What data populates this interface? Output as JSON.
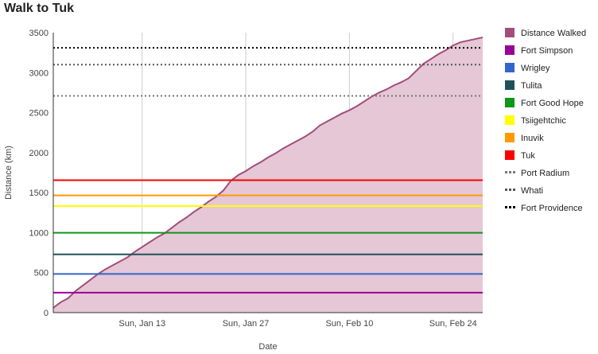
{
  "chart_data": {
    "type": "area",
    "title": "Walk to Tuk",
    "xlabel": "Date",
    "ylabel": "Distance (km)",
    "x_range": [
      "2019-01-01",
      "2019-02-28"
    ],
    "ylim": [
      0,
      3500
    ],
    "y_ticks": [
      0,
      500,
      1000,
      1500,
      2000,
      2500,
      3000,
      3500
    ],
    "x_ticks": [
      {
        "date": "2019-01-13",
        "label": "Sun, Jan 13"
      },
      {
        "date": "2019-01-27",
        "label": "Sun, Jan 27"
      },
      {
        "date": "2019-02-10",
        "label": "Sun, Feb 10"
      },
      {
        "date": "2019-02-24",
        "label": "Sun, Feb 24"
      }
    ],
    "grid": "vertical",
    "legend": "right",
    "series": [
      {
        "name": "Distance Walked",
        "color": "#a34d7b",
        "fill": "#e5c7d6",
        "x": [
          "2019-01-01",
          "2019-01-02",
          "2019-01-03",
          "2019-01-04",
          "2019-01-05",
          "2019-01-06",
          "2019-01-07",
          "2019-01-08",
          "2019-01-09",
          "2019-01-10",
          "2019-01-11",
          "2019-01-12",
          "2019-01-13",
          "2019-01-14",
          "2019-01-15",
          "2019-01-16",
          "2019-01-17",
          "2019-01-18",
          "2019-01-19",
          "2019-01-20",
          "2019-01-21",
          "2019-01-22",
          "2019-01-23",
          "2019-01-24",
          "2019-01-25",
          "2019-01-26",
          "2019-01-27",
          "2019-01-28",
          "2019-01-29",
          "2019-01-30",
          "2019-01-31",
          "2019-02-01",
          "2019-02-02",
          "2019-02-03",
          "2019-02-04",
          "2019-02-05",
          "2019-02-06",
          "2019-02-07",
          "2019-02-08",
          "2019-02-09",
          "2019-02-10",
          "2019-02-11",
          "2019-02-12",
          "2019-02-13",
          "2019-02-14",
          "2019-02-15",
          "2019-02-16",
          "2019-02-17",
          "2019-02-18",
          "2019-02-19",
          "2019-02-20",
          "2019-02-21",
          "2019-02-22",
          "2019-02-23",
          "2019-02-24",
          "2019-02-25",
          "2019-02-26",
          "2019-02-27",
          "2019-02-28"
        ],
        "values": [
          60,
          130,
          180,
          270,
          340,
          410,
          480,
          540,
          590,
          640,
          690,
          760,
          820,
          880,
          940,
          990,
          1060,
          1130,
          1190,
          1260,
          1320,
          1390,
          1450,
          1530,
          1650,
          1720,
          1770,
          1830,
          1880,
          1940,
          1990,
          2050,
          2100,
          2150,
          2200,
          2260,
          2340,
          2390,
          2440,
          2490,
          2530,
          2580,
          2640,
          2700,
          2750,
          2790,
          2840,
          2880,
          2930,
          3020,
          3110,
          3170,
          3230,
          3280,
          3340,
          3380,
          3400,
          3420,
          3440
        ]
      },
      {
        "name": "Fort Simpson",
        "color": "#990099",
        "value": 250,
        "style": "solid"
      },
      {
        "name": "Wrigley",
        "color": "#3366cc",
        "value": 483,
        "style": "solid"
      },
      {
        "name": "Tulita",
        "color": "#22505a",
        "value": 728,
        "style": "solid"
      },
      {
        "name": "Fort Good Hope",
        "color": "#109618",
        "value": 998,
        "style": "solid"
      },
      {
        "name": "Tsiigehtchic",
        "color": "#ffff00",
        "value": 1333,
        "style": "solid"
      },
      {
        "name": "Inuvik",
        "color": "#ff9900",
        "value": 1465,
        "style": "solid"
      },
      {
        "name": "Tuk",
        "color": "#ff0000",
        "value": 1655,
        "style": "solid"
      },
      {
        "name": "Port Radium",
        "color": "#777777",
        "value": 2710,
        "style": "dotted"
      },
      {
        "name": "Whati",
        "color": "#555555",
        "value": 3100,
        "style": "dotted"
      },
      {
        "name": "Fort Providence",
        "color": "#000000",
        "value": 3310,
        "style": "dotted"
      }
    ]
  }
}
